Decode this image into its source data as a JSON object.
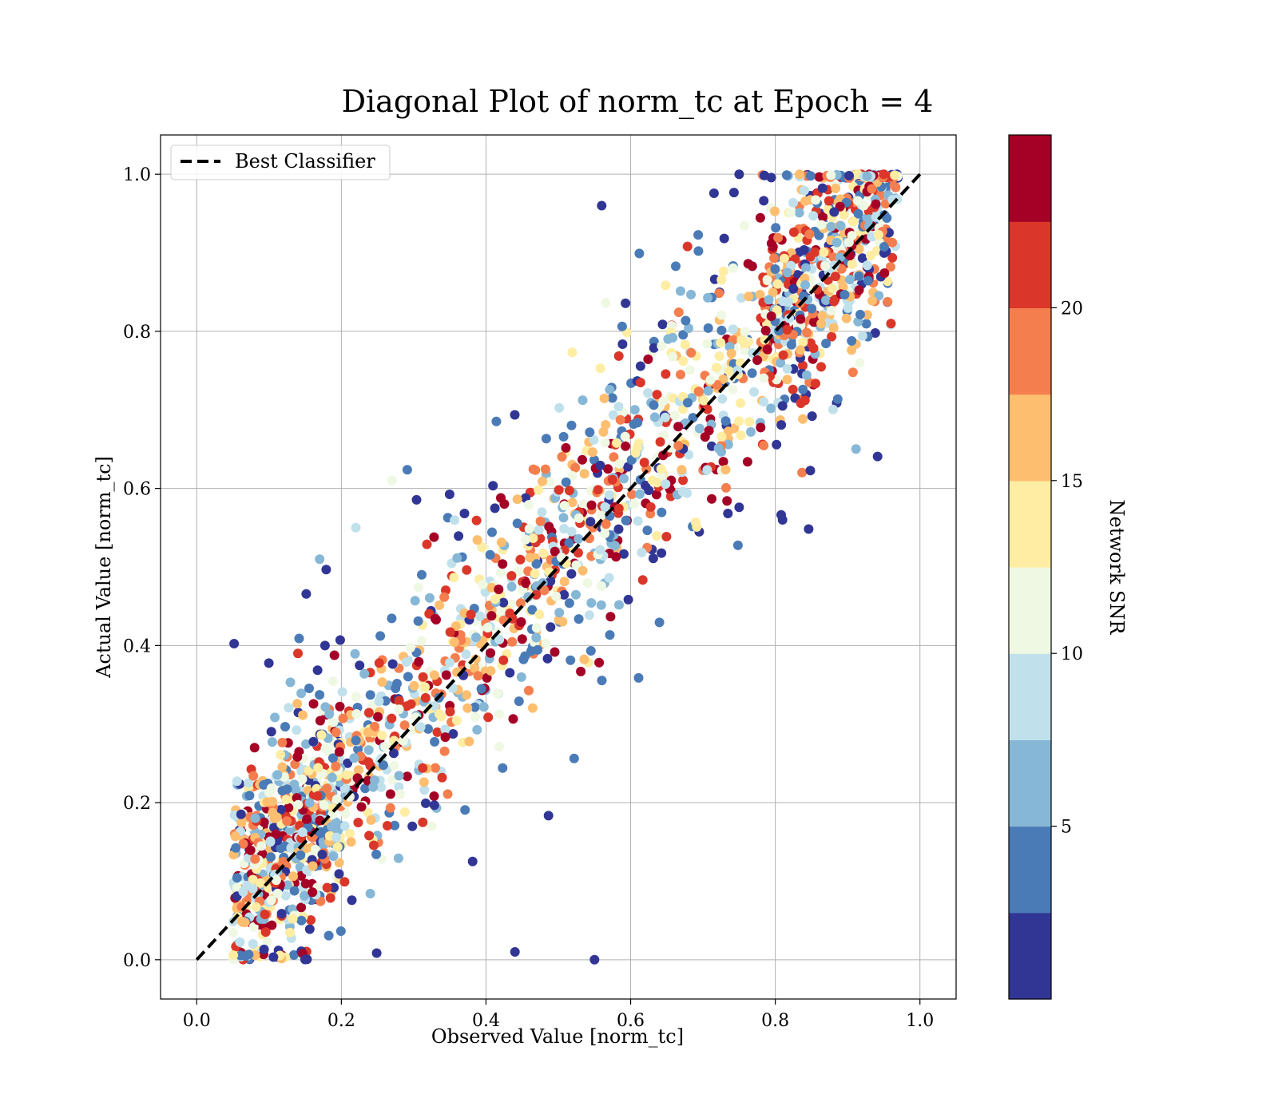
{
  "chart_data": {
    "type": "scatter",
    "title": "Diagonal Plot of norm_tc at Epoch = 4",
    "xlabel": "Observed Value [norm_tc]",
    "ylabel": "Actual Value [norm_tc]",
    "xlim": [
      -0.05,
      1.05
    ],
    "ylim": [
      -0.05,
      1.05
    ],
    "xticks": [
      "0.0",
      "0.2",
      "0.4",
      "0.6",
      "0.8",
      "1.0"
    ],
    "yticks": [
      "0.0",
      "0.2",
      "0.4",
      "0.6",
      "0.8",
      "1.0"
    ],
    "xtick_values": [
      0,
      0.2,
      0.4,
      0.6,
      0.8,
      1.0
    ],
    "ytick_values": [
      0,
      0.2,
      0.4,
      0.6,
      0.8,
      1.0
    ],
    "grid": true,
    "legend": {
      "label": "Best Classifier",
      "position": "top-left"
    },
    "reference_line": {
      "name": "Best Classifier",
      "x": [
        0,
        1
      ],
      "y": [
        0,
        1
      ],
      "style": "dashed",
      "color": "#000000"
    },
    "colorbar": {
      "label": "Network SNR",
      "min": 0,
      "max": 25,
      "ticks": [
        "5",
        "10",
        "15",
        "20"
      ],
      "tick_values": [
        5,
        10,
        15,
        20
      ],
      "bins": 10,
      "colors": [
        "#313695",
        "#4a7bb7",
        "#86b7d6",
        "#c0e1ec",
        "#eff8e3",
        "#feeda2",
        "#fdbe70",
        "#f57e4f",
        "#da372a",
        "#a50026"
      ]
    },
    "series": [
      {
        "name": "samples",
        "point_count": 2200,
        "approx_noise_sd": 0.07,
        "sample_points": [
          {
            "x": 0.56,
            "y": 0.96,
            "snr": 1
          },
          {
            "x": 0.55,
            "y": 0.0,
            "snr": 1
          },
          {
            "x": 0.44,
            "y": 0.01,
            "snr": 1
          },
          {
            "x": 0.81,
            "y": 0.56,
            "snr": 1
          },
          {
            "x": 0.17,
            "y": 0.51,
            "snr": 6
          },
          {
            "x": 0.22,
            "y": 0.55,
            "snr": 9
          },
          {
            "x": 0.27,
            "y": 0.61,
            "snr": 11
          },
          {
            "x": 0.14,
            "y": 0.39,
            "snr": 22
          },
          {
            "x": 0.08,
            "y": 0.27,
            "snr": 24
          },
          {
            "x": 0.75,
            "y": 1.0,
            "snr": 2
          },
          {
            "x": 0.95,
            "y": 1.0,
            "snr": 21
          },
          {
            "x": 0.96,
            "y": 0.81,
            "snr": 22
          }
        ]
      }
    ]
  }
}
